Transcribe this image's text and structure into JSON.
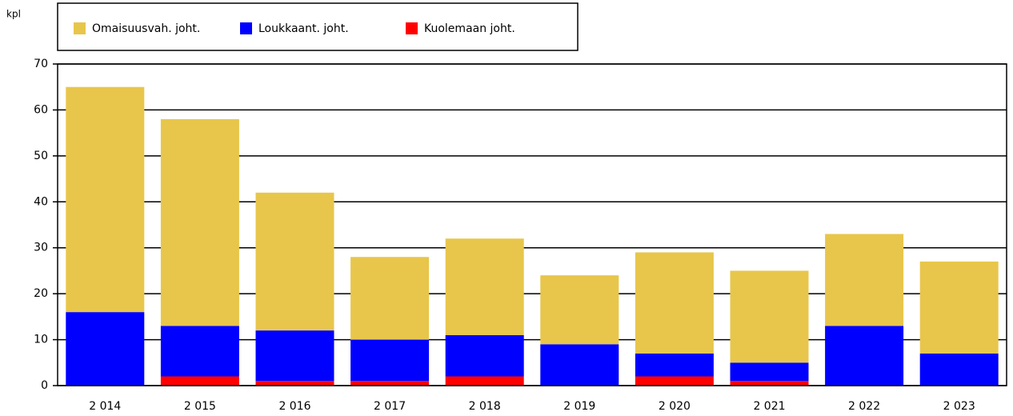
{
  "chart_data": {
    "type": "stacked_bar",
    "unit_label": "kpl",
    "categories": [
      "2 014",
      "2 015",
      "2 016",
      "2 017",
      "2 018",
      "2 019",
      "2 020",
      "2 021",
      "2 022",
      "2 023"
    ],
    "series": [
      {
        "name": "Omaisuusvah. joht.",
        "color": "#e8c64b",
        "values": [
          49,
          45,
          30,
          18,
          21,
          15,
          22,
          20,
          20,
          20
        ]
      },
      {
        "name": "Loukkaant. joht.",
        "color": "#0000ff",
        "values": [
          16,
          11,
          11,
          9,
          9,
          9,
          5,
          4,
          13,
          7
        ]
      },
      {
        "name": "Kuolemaan joht.",
        "color": "#ff0000",
        "values": [
          0,
          2,
          1,
          1,
          2,
          0,
          2,
          1,
          0,
          0
        ]
      }
    ],
    "stack_order": [
      2,
      1,
      0
    ],
    "ylim": [
      0,
      70
    ],
    "yticks": [
      0,
      10,
      20,
      30,
      40,
      50,
      60,
      70
    ],
    "grid": true
  }
}
